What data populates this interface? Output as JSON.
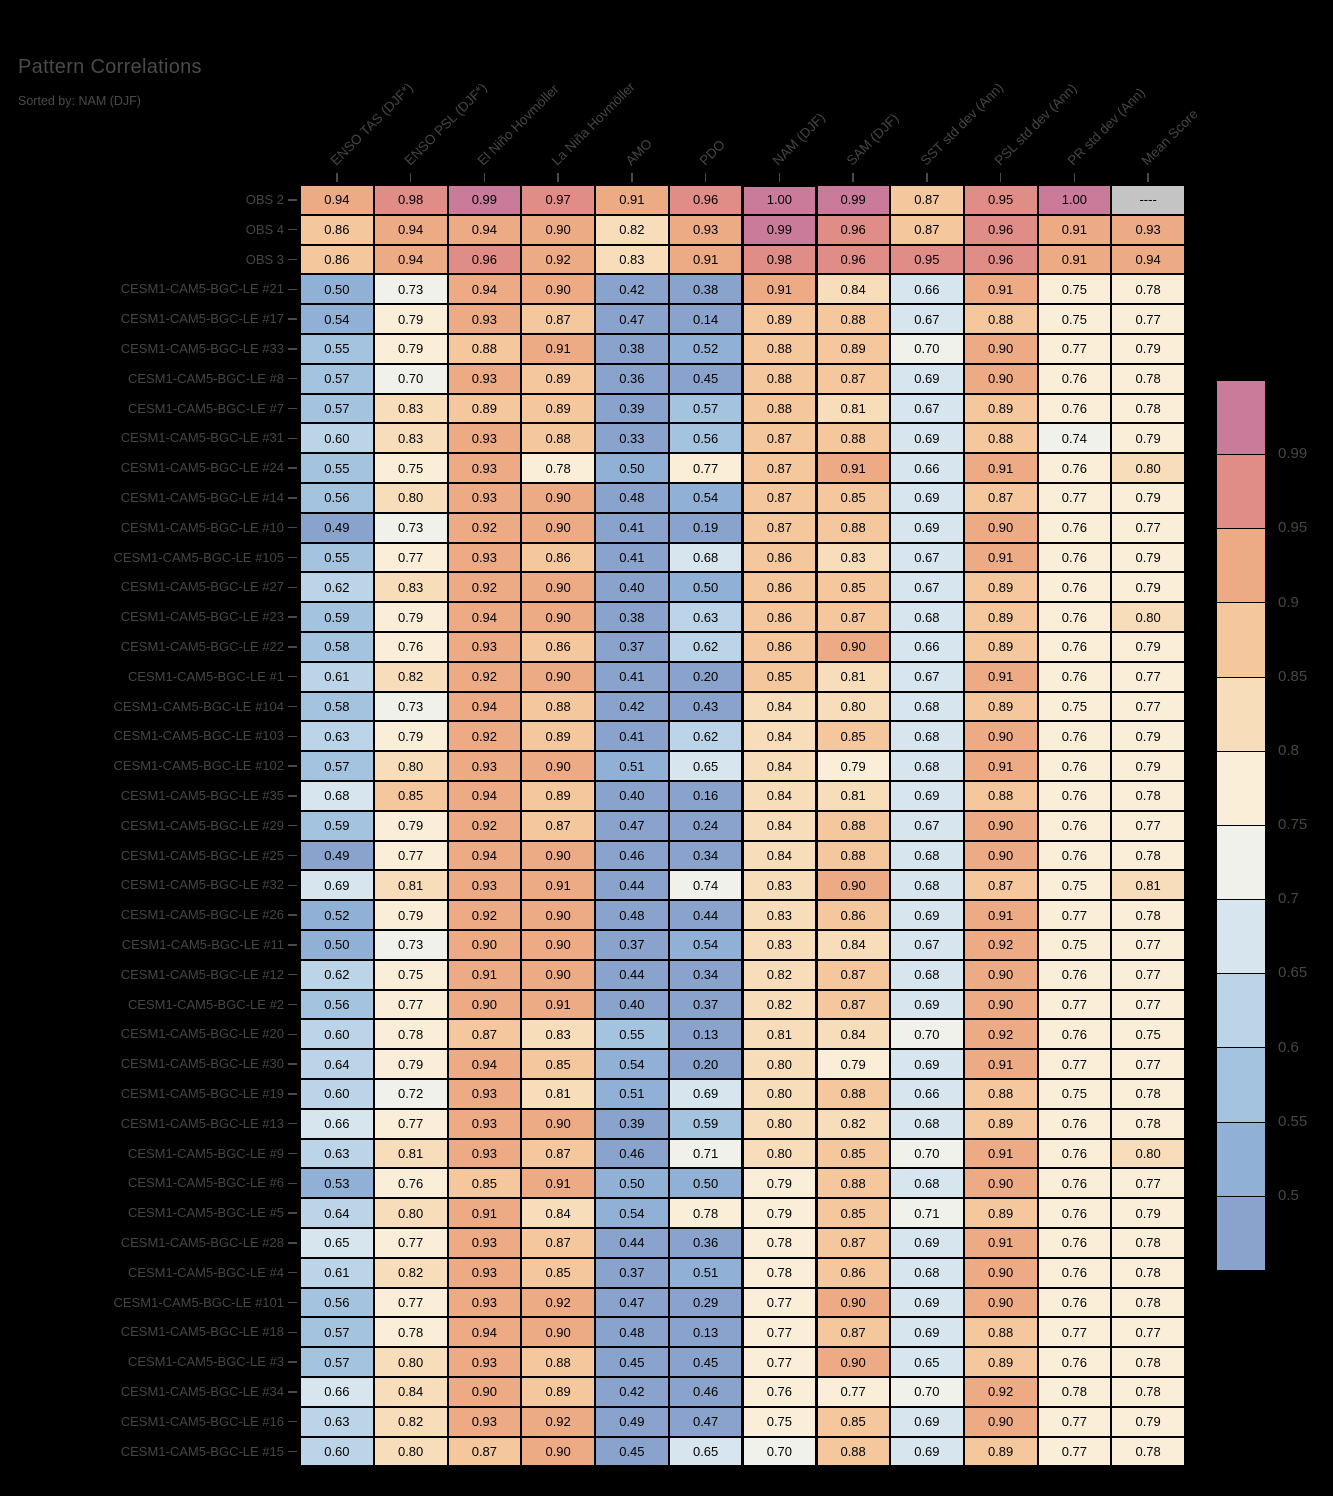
{
  "chart_data": {
    "type": "heatmap",
    "title": "Pattern Correlations",
    "subtitle": "Sorted by: NAM (DJF)",
    "columns": [
      "ENSO TAS (DJF*)",
      "ENSO PSL (DJF*)",
      "El Niño Hovmöller",
      "La Niña Hovmöller",
      "AMO",
      "PDO",
      "NAM (DJF)",
      "SAM (DJF)",
      "SST std dev (Ann)",
      "PSL std dev (Ann)",
      "PR std dev (Ann)",
      "Mean Score"
    ],
    "highlighted_column": "NAM (DJF)",
    "highlighted_column_index": 6,
    "missing_value_text": "----",
    "rows": [
      {
        "label": "OBS 2",
        "values": [
          "0.94",
          "0.98",
          "0.99",
          "0.97",
          "0.91",
          "0.96",
          "1.00",
          "0.99",
          "0.87",
          "0.95",
          "1.00",
          "----"
        ]
      },
      {
        "label": "OBS 4",
        "values": [
          "0.86",
          "0.94",
          "0.94",
          "0.90",
          "0.82",
          "0.93",
          "0.99",
          "0.96",
          "0.87",
          "0.96",
          "0.91",
          "0.93"
        ]
      },
      {
        "label": "OBS 3",
        "values": [
          "0.86",
          "0.94",
          "0.96",
          "0.92",
          "0.83",
          "0.91",
          "0.98",
          "0.96",
          "0.95",
          "0.96",
          "0.91",
          "0.94"
        ]
      },
      {
        "label": "CESM1-CAM5-BGC-LE #21",
        "values": [
          "0.50",
          "0.73",
          "0.94",
          "0.90",
          "0.42",
          "0.38",
          "0.91",
          "0.84",
          "0.66",
          "0.91",
          "0.75",
          "0.78"
        ]
      },
      {
        "label": "CESM1-CAM5-BGC-LE #17",
        "values": [
          "0.54",
          "0.79",
          "0.93",
          "0.87",
          "0.47",
          "0.14",
          "0.89",
          "0.88",
          "0.67",
          "0.88",
          "0.75",
          "0.77"
        ]
      },
      {
        "label": "CESM1-CAM5-BGC-LE #33",
        "values": [
          "0.55",
          "0.79",
          "0.88",
          "0.91",
          "0.38",
          "0.52",
          "0.88",
          "0.89",
          "0.70",
          "0.90",
          "0.77",
          "0.79"
        ]
      },
      {
        "label": "CESM1-CAM5-BGC-LE #8",
        "values": [
          "0.57",
          "0.70",
          "0.93",
          "0.89",
          "0.36",
          "0.45",
          "0.88",
          "0.87",
          "0.69",
          "0.90",
          "0.76",
          "0.78"
        ]
      },
      {
        "label": "CESM1-CAM5-BGC-LE #7",
        "values": [
          "0.57",
          "0.83",
          "0.89",
          "0.89",
          "0.39",
          "0.57",
          "0.88",
          "0.81",
          "0.67",
          "0.89",
          "0.76",
          "0.78"
        ]
      },
      {
        "label": "CESM1-CAM5-BGC-LE #31",
        "values": [
          "0.60",
          "0.83",
          "0.93",
          "0.88",
          "0.33",
          "0.56",
          "0.87",
          "0.88",
          "0.69",
          "0.88",
          "0.74",
          "0.79"
        ]
      },
      {
        "label": "CESM1-CAM5-BGC-LE #24",
        "values": [
          "0.55",
          "0.75",
          "0.93",
          "0.78",
          "0.50",
          "0.77",
          "0.87",
          "0.91",
          "0.66",
          "0.91",
          "0.76",
          "0.80"
        ]
      },
      {
        "label": "CESM1-CAM5-BGC-LE #14",
        "values": [
          "0.56",
          "0.80",
          "0.93",
          "0.90",
          "0.48",
          "0.54",
          "0.87",
          "0.85",
          "0.69",
          "0.87",
          "0.77",
          "0.79"
        ]
      },
      {
        "label": "CESM1-CAM5-BGC-LE #10",
        "values": [
          "0.49",
          "0.73",
          "0.92",
          "0.90",
          "0.41",
          "0.19",
          "0.87",
          "0.88",
          "0.69",
          "0.90",
          "0.76",
          "0.77"
        ]
      },
      {
        "label": "CESM1-CAM5-BGC-LE #105",
        "values": [
          "0.55",
          "0.77",
          "0.93",
          "0.86",
          "0.41",
          "0.68",
          "0.86",
          "0.83",
          "0.67",
          "0.91",
          "0.76",
          "0.79"
        ]
      },
      {
        "label": "CESM1-CAM5-BGC-LE #27",
        "values": [
          "0.62",
          "0.83",
          "0.92",
          "0.90",
          "0.40",
          "0.50",
          "0.86",
          "0.85",
          "0.67",
          "0.89",
          "0.76",
          "0.79"
        ]
      },
      {
        "label": "CESM1-CAM5-BGC-LE #23",
        "values": [
          "0.59",
          "0.79",
          "0.94",
          "0.90",
          "0.38",
          "0.63",
          "0.86",
          "0.87",
          "0.68",
          "0.89",
          "0.76",
          "0.80"
        ]
      },
      {
        "label": "CESM1-CAM5-BGC-LE #22",
        "values": [
          "0.58",
          "0.76",
          "0.93",
          "0.86",
          "0.37",
          "0.62",
          "0.86",
          "0.90",
          "0.66",
          "0.89",
          "0.76",
          "0.79"
        ]
      },
      {
        "label": "CESM1-CAM5-BGC-LE #1",
        "values": [
          "0.61",
          "0.82",
          "0.92",
          "0.90",
          "0.41",
          "0.20",
          "0.85",
          "0.81",
          "0.67",
          "0.91",
          "0.76",
          "0.77"
        ]
      },
      {
        "label": "CESM1-CAM5-BGC-LE #104",
        "values": [
          "0.58",
          "0.73",
          "0.94",
          "0.88",
          "0.42",
          "0.43",
          "0.84",
          "0.80",
          "0.68",
          "0.89",
          "0.75",
          "0.77"
        ]
      },
      {
        "label": "CESM1-CAM5-BGC-LE #103",
        "values": [
          "0.63",
          "0.79",
          "0.92",
          "0.89",
          "0.41",
          "0.62",
          "0.84",
          "0.85",
          "0.68",
          "0.90",
          "0.76",
          "0.79"
        ]
      },
      {
        "label": "CESM1-CAM5-BGC-LE #102",
        "values": [
          "0.57",
          "0.80",
          "0.93",
          "0.90",
          "0.51",
          "0.65",
          "0.84",
          "0.79",
          "0.68",
          "0.91",
          "0.76",
          "0.79"
        ]
      },
      {
        "label": "CESM1-CAM5-BGC-LE #35",
        "values": [
          "0.68",
          "0.85",
          "0.94",
          "0.89",
          "0.40",
          "0.16",
          "0.84",
          "0.81",
          "0.69",
          "0.88",
          "0.76",
          "0.78"
        ]
      },
      {
        "label": "CESM1-CAM5-BGC-LE #29",
        "values": [
          "0.59",
          "0.79",
          "0.92",
          "0.87",
          "0.47",
          "0.24",
          "0.84",
          "0.88",
          "0.67",
          "0.90",
          "0.76",
          "0.77"
        ]
      },
      {
        "label": "CESM1-CAM5-BGC-LE #25",
        "values": [
          "0.49",
          "0.77",
          "0.94",
          "0.90",
          "0.46",
          "0.34",
          "0.84",
          "0.88",
          "0.68",
          "0.90",
          "0.76",
          "0.78"
        ]
      },
      {
        "label": "CESM1-CAM5-BGC-LE #32",
        "values": [
          "0.69",
          "0.81",
          "0.93",
          "0.91",
          "0.44",
          "0.74",
          "0.83",
          "0.90",
          "0.68",
          "0.87",
          "0.75",
          "0.81"
        ]
      },
      {
        "label": "CESM1-CAM5-BGC-LE #26",
        "values": [
          "0.52",
          "0.79",
          "0.92",
          "0.90",
          "0.48",
          "0.44",
          "0.83",
          "0.86",
          "0.69",
          "0.91",
          "0.77",
          "0.78"
        ]
      },
      {
        "label": "CESM1-CAM5-BGC-LE #11",
        "values": [
          "0.50",
          "0.73",
          "0.90",
          "0.90",
          "0.37",
          "0.54",
          "0.83",
          "0.84",
          "0.67",
          "0.92",
          "0.75",
          "0.77"
        ]
      },
      {
        "label": "CESM1-CAM5-BGC-LE #12",
        "values": [
          "0.62",
          "0.75",
          "0.91",
          "0.90",
          "0.44",
          "0.34",
          "0.82",
          "0.87",
          "0.68",
          "0.90",
          "0.76",
          "0.77"
        ]
      },
      {
        "label": "CESM1-CAM5-BGC-LE #2",
        "values": [
          "0.56",
          "0.77",
          "0.90",
          "0.91",
          "0.40",
          "0.37",
          "0.82",
          "0.87",
          "0.69",
          "0.90",
          "0.77",
          "0.77"
        ]
      },
      {
        "label": "CESM1-CAM5-BGC-LE #20",
        "values": [
          "0.60",
          "0.78",
          "0.87",
          "0.83",
          "0.55",
          "0.13",
          "0.81",
          "0.84",
          "0.70",
          "0.92",
          "0.76",
          "0.75"
        ]
      },
      {
        "label": "CESM1-CAM5-BGC-LE #30",
        "values": [
          "0.64",
          "0.79",
          "0.94",
          "0.85",
          "0.54",
          "0.20",
          "0.80",
          "0.79",
          "0.69",
          "0.91",
          "0.77",
          "0.77"
        ]
      },
      {
        "label": "CESM1-CAM5-BGC-LE #19",
        "values": [
          "0.60",
          "0.72",
          "0.93",
          "0.81",
          "0.51",
          "0.69",
          "0.80",
          "0.88",
          "0.66",
          "0.88",
          "0.75",
          "0.78"
        ]
      },
      {
        "label": "CESM1-CAM5-BGC-LE #13",
        "values": [
          "0.66",
          "0.77",
          "0.93",
          "0.90",
          "0.39",
          "0.59",
          "0.80",
          "0.82",
          "0.68",
          "0.89",
          "0.76",
          "0.78"
        ]
      },
      {
        "label": "CESM1-CAM5-BGC-LE #9",
        "values": [
          "0.63",
          "0.81",
          "0.93",
          "0.87",
          "0.46",
          "0.71",
          "0.80",
          "0.85",
          "0.70",
          "0.91",
          "0.76",
          "0.80"
        ]
      },
      {
        "label": "CESM1-CAM5-BGC-LE #6",
        "values": [
          "0.53",
          "0.76",
          "0.85",
          "0.91",
          "0.50",
          "0.50",
          "0.79",
          "0.88",
          "0.68",
          "0.90",
          "0.76",
          "0.77"
        ]
      },
      {
        "label": "CESM1-CAM5-BGC-LE #5",
        "values": [
          "0.64",
          "0.80",
          "0.91",
          "0.84",
          "0.54",
          "0.78",
          "0.79",
          "0.85",
          "0.71",
          "0.89",
          "0.76",
          "0.79"
        ]
      },
      {
        "label": "CESM1-CAM5-BGC-LE #28",
        "values": [
          "0.65",
          "0.77",
          "0.93",
          "0.87",
          "0.44",
          "0.36",
          "0.78",
          "0.87",
          "0.69",
          "0.91",
          "0.76",
          "0.78"
        ]
      },
      {
        "label": "CESM1-CAM5-BGC-LE #4",
        "values": [
          "0.61",
          "0.82",
          "0.93",
          "0.85",
          "0.37",
          "0.51",
          "0.78",
          "0.86",
          "0.68",
          "0.90",
          "0.76",
          "0.78"
        ]
      },
      {
        "label": "CESM1-CAM5-BGC-LE #101",
        "values": [
          "0.56",
          "0.77",
          "0.93",
          "0.92",
          "0.47",
          "0.29",
          "0.77",
          "0.90",
          "0.69",
          "0.90",
          "0.76",
          "0.78"
        ]
      },
      {
        "label": "CESM1-CAM5-BGC-LE #18",
        "values": [
          "0.57",
          "0.78",
          "0.94",
          "0.90",
          "0.48",
          "0.13",
          "0.77",
          "0.87",
          "0.69",
          "0.88",
          "0.77",
          "0.77"
        ]
      },
      {
        "label": "CESM1-CAM5-BGC-LE #3",
        "values": [
          "0.57",
          "0.80",
          "0.93",
          "0.88",
          "0.45",
          "0.45",
          "0.77",
          "0.90",
          "0.65",
          "0.89",
          "0.76",
          "0.78"
        ]
      },
      {
        "label": "CESM1-CAM5-BGC-LE #34",
        "values": [
          "0.66",
          "0.84",
          "0.90",
          "0.89",
          "0.42",
          "0.46",
          "0.76",
          "0.77",
          "0.70",
          "0.92",
          "0.78",
          "0.78"
        ]
      },
      {
        "label": "CESM1-CAM5-BGC-LE #16",
        "values": [
          "0.63",
          "0.82",
          "0.93",
          "0.92",
          "0.49",
          "0.47",
          "0.75",
          "0.85",
          "0.69",
          "0.90",
          "0.77",
          "0.79"
        ]
      },
      {
        "label": "CESM1-CAM5-BGC-LE #15",
        "values": [
          "0.60",
          "0.80",
          "0.87",
          "0.90",
          "0.45",
          "0.65",
          "0.70",
          "0.88",
          "0.69",
          "0.89",
          "0.77",
          "0.78"
        ]
      }
    ],
    "colorbar": {
      "tick_labels": [
        "0.99",
        "0.95",
        "0.9",
        "0.85",
        "0.8",
        "0.75",
        "0.7",
        "0.65",
        "0.6",
        "0.55",
        "0.5"
      ],
      "bin_edges": [
        0.5,
        0.55,
        0.6,
        0.65,
        0.7,
        0.75,
        0.8,
        0.85,
        0.9,
        0.95,
        0.99
      ],
      "bin_colors_low_to_high": [
        "#89a3cc",
        "#91b0d5",
        "#a4c3de",
        "#bbd4e7",
        "#d6e5ee",
        "#f0f1ea",
        "#faeed8",
        "#f8ddba",
        "#f4c79c",
        "#ecaa85",
        "#e18d87",
        "#ca7b99"
      ],
      "missing_color": "#c4c4c4"
    }
  },
  "colors": {
    "background": "#000000",
    "label_text": "#464646",
    "cell_text": "#000000",
    "grid": "#000000",
    "highlight_border": "#000000"
  }
}
